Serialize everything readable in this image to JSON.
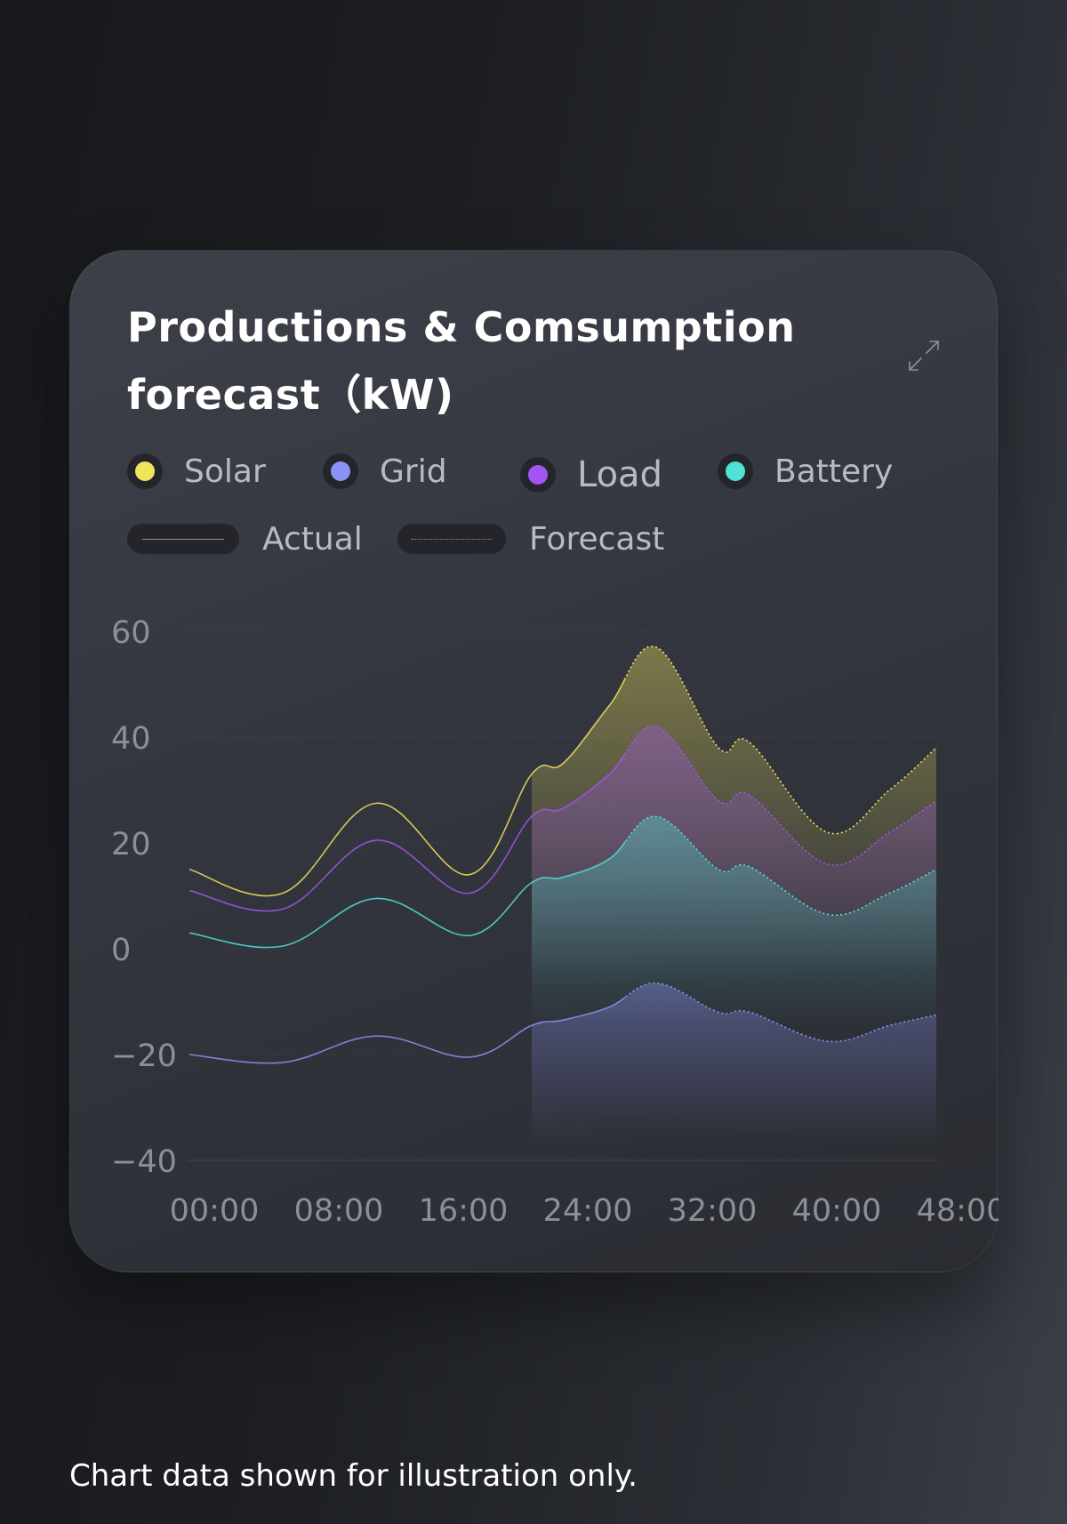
{
  "title": "Productions & Comsumption forecast（kW)",
  "footnote": "Chart data shown for illustration only.",
  "icons": {
    "expand": "expand-arrows-icon"
  },
  "legend": {
    "series": [
      {
        "label": "Solar",
        "color": "#f2e35c"
      },
      {
        "label": "Grid",
        "color": "#8a93f5"
      },
      {
        "label": "Load",
        "color": "#a255f0"
      },
      {
        "label": "Battery",
        "color": "#4fe3d6"
      }
    ],
    "styles": [
      {
        "label": "Actual",
        "line": "solid"
      },
      {
        "label": "Forecast",
        "line": "dotted"
      }
    ]
  },
  "chart_data": {
    "type": "area",
    "title": "Productions & Comsumption forecast（kW)",
    "xlabel": "",
    "ylabel": "",
    "x_ticks": [
      "00:00",
      "08:00",
      "16:00",
      "24:00",
      "32:00",
      "40:00",
      "48:00"
    ],
    "xlim": [
      0,
      48
    ],
    "y_ticks": [
      60,
      40,
      20,
      0,
      -20,
      -40
    ],
    "ylim": [
      -40,
      60
    ],
    "forecast_starts_at_hour": 28,
    "series": [
      {
        "name": "Solar",
        "color": "#f2e35c",
        "x": [
          0,
          6,
          12,
          18,
          22,
          24,
          27,
          30,
          34,
          36,
          41,
          45,
          48
        ],
        "y": [
          15,
          10.5,
          27.5,
          14,
          33,
          35,
          46,
          57,
          38,
          39,
          22,
          30,
          38
        ]
      },
      {
        "name": "Load",
        "color": "#a255f0",
        "x": [
          0,
          6,
          12,
          18,
          22,
          24,
          27,
          30,
          34,
          36,
          41,
          45,
          48
        ],
        "y": [
          11,
          7.5,
          20.5,
          10.5,
          25,
          26.5,
          33,
          42,
          28,
          29,
          16,
          22,
          28
        ]
      },
      {
        "name": "Battery",
        "color": "#4fe3d6",
        "x": [
          0,
          6,
          12,
          18,
          22,
          24,
          27,
          30,
          34,
          36,
          41,
          45,
          48
        ],
        "y": [
          3,
          0.5,
          9.5,
          2.5,
          12.5,
          13.5,
          17,
          25,
          15,
          15.5,
          6.5,
          10.5,
          15
        ]
      },
      {
        "name": "Grid",
        "color": "#8a93f5",
        "x": [
          0,
          6,
          12,
          18,
          22,
          24,
          27,
          30,
          34,
          36,
          41,
          45,
          48
        ],
        "y": [
          -20,
          -21.5,
          -16.5,
          -20.5,
          -14.5,
          -13.5,
          -11,
          -6.5,
          -12,
          -12,
          -17.5,
          -14.5,
          -12.5
        ]
      }
    ],
    "grid": "dotted horizontal",
    "legend_position": "top"
  }
}
